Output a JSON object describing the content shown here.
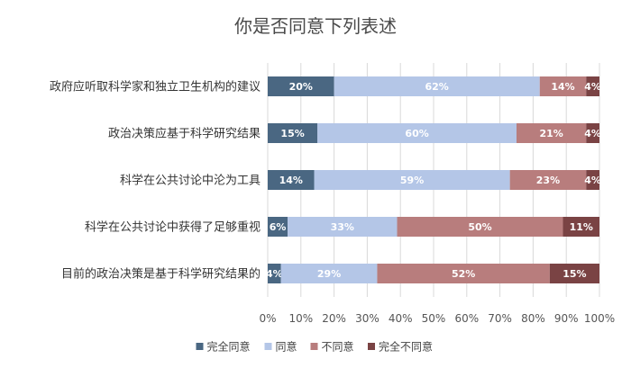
{
  "chart_data": {
    "type": "bar",
    "orientation": "horizontal",
    "stacked": true,
    "title": "你是否同意下列表述",
    "categories": [
      "政府应听取科学家和独立卫生机构的建议",
      "政治决策应基于科学研究结果",
      "科学在公共讨论中沦为工具",
      "科学在公共讨论中获得了足够重视",
      "目前的政治决策是基于科学研究结果的"
    ],
    "series": [
      {
        "name": "完全同意",
        "color": "#4a6782",
        "values": [
          20,
          15,
          14,
          6,
          4
        ]
      },
      {
        "name": "同意",
        "color": "#b4c6e7",
        "values": [
          62,
          60,
          59,
          33,
          29
        ]
      },
      {
        "name": "不同意",
        "color": "#b87d7d",
        "values": [
          14,
          21,
          23,
          50,
          52
        ]
      },
      {
        "name": "完全不同意",
        "color": "#7a4344",
        "values": [
          4,
          4,
          4,
          11,
          15
        ]
      }
    ],
    "x_ticks": [
      "0%",
      "10%",
      "20%",
      "30%",
      "40%",
      "50%",
      "60%",
      "70%",
      "80%",
      "90%",
      "100%"
    ],
    "xlim": [
      0,
      100
    ],
    "data_label_suffix": "%",
    "grid": true,
    "legend_position": "bottom"
  }
}
